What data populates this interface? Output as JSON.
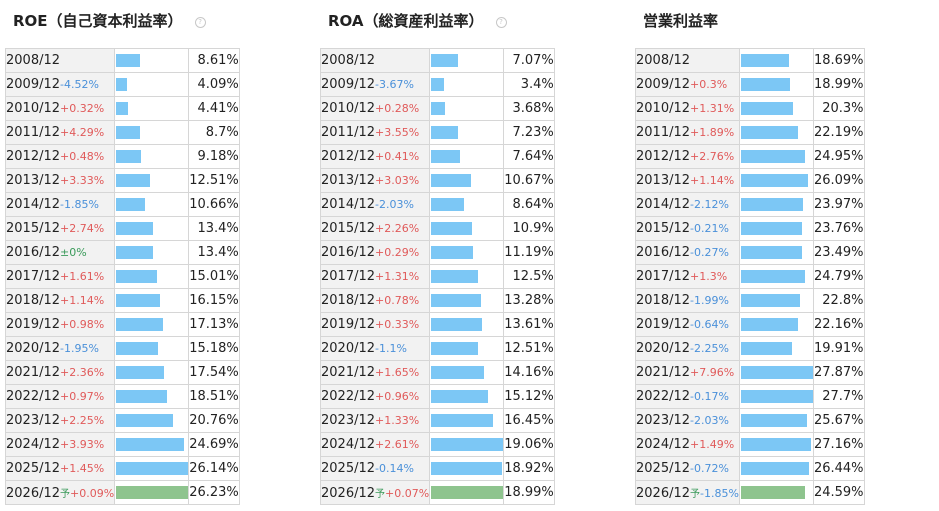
{
  "chart_data": [
    {
      "type": "table",
      "title": "ROE（自己資本利益率）",
      "bar_max": 26.23,
      "rows": [
        {
          "year": "2008/12",
          "change": "",
          "value": 8.61,
          "label": "8.61%"
        },
        {
          "year": "2009/12",
          "change": "-4.52%",
          "value": 4.09,
          "label": "4.09%"
        },
        {
          "year": "2010/12",
          "change": "+0.32%",
          "value": 4.41,
          "label": "4.41%"
        },
        {
          "year": "2011/12",
          "change": "+4.29%",
          "value": 8.7,
          "label": "8.7%"
        },
        {
          "year": "2012/12",
          "change": "+0.48%",
          "value": 9.18,
          "label": "9.18%"
        },
        {
          "year": "2013/12",
          "change": "+3.33%",
          "value": 12.51,
          "label": "12.51%"
        },
        {
          "year": "2014/12",
          "change": "-1.85%",
          "value": 10.66,
          "label": "10.66%"
        },
        {
          "year": "2015/12",
          "change": "+2.74%",
          "value": 13.4,
          "label": "13.4%"
        },
        {
          "year": "2016/12",
          "change": "±0%",
          "value": 13.4,
          "label": "13.4%"
        },
        {
          "year": "2017/12",
          "change": "+1.61%",
          "value": 15.01,
          "label": "15.01%"
        },
        {
          "year": "2018/12",
          "change": "+1.14%",
          "value": 16.15,
          "label": "16.15%"
        },
        {
          "year": "2019/12",
          "change": "+0.98%",
          "value": 17.13,
          "label": "17.13%"
        },
        {
          "year": "2020/12",
          "change": "-1.95%",
          "value": 15.18,
          "label": "15.18%"
        },
        {
          "year": "2021/12",
          "change": "+2.36%",
          "value": 17.54,
          "label": "17.54%"
        },
        {
          "year": "2022/12",
          "change": "+0.97%",
          "value": 18.51,
          "label": "18.51%"
        },
        {
          "year": "2023/12",
          "change": "+2.25%",
          "value": 20.76,
          "label": "20.76%"
        },
        {
          "year": "2024/12",
          "change": "+3.93%",
          "value": 24.69,
          "label": "24.69%"
        },
        {
          "year": "2025/12",
          "change": "+1.45%",
          "value": 26.14,
          "label": "26.14%"
        },
        {
          "year": "2026/12",
          "forecast_mark": "予",
          "change": "+0.09%",
          "value": 26.23,
          "label": "26.23%",
          "forecast": true
        }
      ]
    },
    {
      "type": "table",
      "title": "ROA（総資産利益率）",
      "bar_max": 19.06,
      "rows": [
        {
          "year": "2008/12",
          "change": "",
          "value": 7.07,
          "label": "7.07%"
        },
        {
          "year": "2009/12",
          "change": "-3.67%",
          "value": 3.4,
          "label": "3.4%"
        },
        {
          "year": "2010/12",
          "change": "+0.28%",
          "value": 3.68,
          "label": "3.68%"
        },
        {
          "year": "2011/12",
          "change": "+3.55%",
          "value": 7.23,
          "label": "7.23%"
        },
        {
          "year": "2012/12",
          "change": "+0.41%",
          "value": 7.64,
          "label": "7.64%"
        },
        {
          "year": "2013/12",
          "change": "+3.03%",
          "value": 10.67,
          "label": "10.67%"
        },
        {
          "year": "2014/12",
          "change": "-2.03%",
          "value": 8.64,
          "label": "8.64%"
        },
        {
          "year": "2015/12",
          "change": "+2.26%",
          "value": 10.9,
          "label": "10.9%"
        },
        {
          "year": "2016/12",
          "change": "+0.29%",
          "value": 11.19,
          "label": "11.19%"
        },
        {
          "year": "2017/12",
          "change": "+1.31%",
          "value": 12.5,
          "label": "12.5%"
        },
        {
          "year": "2018/12",
          "change": "+0.78%",
          "value": 13.28,
          "label": "13.28%"
        },
        {
          "year": "2019/12",
          "change": "+0.33%",
          "value": 13.61,
          "label": "13.61%"
        },
        {
          "year": "2020/12",
          "change": "-1.1%",
          "value": 12.51,
          "label": "12.51%"
        },
        {
          "year": "2021/12",
          "change": "+1.65%",
          "value": 14.16,
          "label": "14.16%"
        },
        {
          "year": "2022/12",
          "change": "+0.96%",
          "value": 15.12,
          "label": "15.12%"
        },
        {
          "year": "2023/12",
          "change": "+1.33%",
          "value": 16.45,
          "label": "16.45%"
        },
        {
          "year": "2024/12",
          "change": "+2.61%",
          "value": 19.06,
          "label": "19.06%"
        },
        {
          "year": "2025/12",
          "change": "-0.14%",
          "value": 18.92,
          "label": "18.92%"
        },
        {
          "year": "2026/12",
          "forecast_mark": "予",
          "change": "+0.07%",
          "value": 18.99,
          "label": "18.99%",
          "forecast": true
        }
      ]
    },
    {
      "type": "table",
      "title": "営業利益率",
      "bar_max": 27.87,
      "rows": [
        {
          "year": "2008/12",
          "change": "",
          "value": 18.69,
          "label": "18.69%"
        },
        {
          "year": "2009/12",
          "change": "+0.3%",
          "value": 18.99,
          "label": "18.99%"
        },
        {
          "year": "2010/12",
          "change": "+1.31%",
          "value": 20.3,
          "label": "20.3%"
        },
        {
          "year": "2011/12",
          "change": "+1.89%",
          "value": 22.19,
          "label": "22.19%"
        },
        {
          "year": "2012/12",
          "change": "+2.76%",
          "value": 24.95,
          "label": "24.95%"
        },
        {
          "year": "2013/12",
          "change": "+1.14%",
          "value": 26.09,
          "label": "26.09%"
        },
        {
          "year": "2014/12",
          "change": "-2.12%",
          "value": 23.97,
          "label": "23.97%"
        },
        {
          "year": "2015/12",
          "change": "-0.21%",
          "value": 23.76,
          "label": "23.76%"
        },
        {
          "year": "2016/12",
          "change": "-0.27%",
          "value": 23.49,
          "label": "23.49%"
        },
        {
          "year": "2017/12",
          "change": "+1.3%",
          "value": 24.79,
          "label": "24.79%"
        },
        {
          "year": "2018/12",
          "change": "-1.99%",
          "value": 22.8,
          "label": "22.8%"
        },
        {
          "year": "2019/12",
          "change": "-0.64%",
          "value": 22.16,
          "label": "22.16%"
        },
        {
          "year": "2020/12",
          "change": "-2.25%",
          "value": 19.91,
          "label": "19.91%"
        },
        {
          "year": "2021/12",
          "change": "+7.96%",
          "value": 27.87,
          "label": "27.87%"
        },
        {
          "year": "2022/12",
          "change": "-0.17%",
          "value": 27.7,
          "label": "27.7%"
        },
        {
          "year": "2023/12",
          "change": "-2.03%",
          "value": 25.67,
          "label": "25.67%"
        },
        {
          "year": "2024/12",
          "change": "+1.49%",
          "value": 27.16,
          "label": "27.16%"
        },
        {
          "year": "2025/12",
          "change": "-0.72%",
          "value": 26.44,
          "label": "26.44%"
        },
        {
          "year": "2026/12",
          "forecast_mark": "予",
          "change": "-1.85%",
          "value": 24.59,
          "label": "24.59%",
          "forecast": true
        }
      ]
    }
  ],
  "colors": {
    "bar": "#7cc7f5",
    "forecast_bar": "#8ec48e",
    "positive": "#e05a5a",
    "negative": "#4a90d9",
    "neutral": "#3a9a5a"
  }
}
